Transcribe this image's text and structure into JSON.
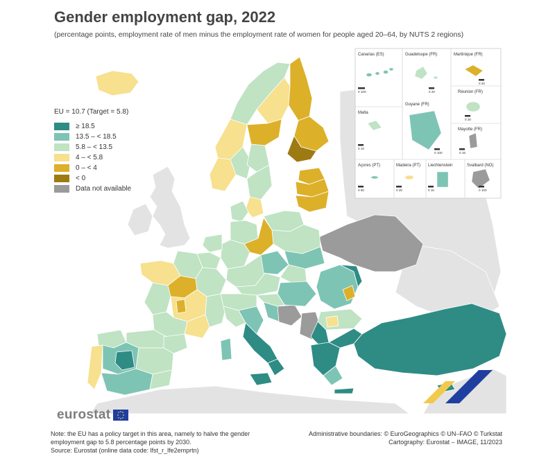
{
  "title": "Gender employment gap, 2022",
  "subtitle": "(percentage points, employment rate of men minus the employment rate of women for people aged 20–64, by NUTS 2 regions)",
  "legend": {
    "eu_value": "EU = 10.7 (Target = 5.8)",
    "classes": [
      {
        "label": "≥ 18.5",
        "color": "#2e8c85"
      },
      {
        "label": "13.5 – < 18.5",
        "color": "#7ec4b4"
      },
      {
        "label": "5.8 – < 13.5",
        "color": "#bfe3c3"
      },
      {
        "label": "4 – < 5.8",
        "color": "#f7e08e"
      },
      {
        "label": "0 – < 4",
        "color": "#ddb02a"
      },
      {
        "label": "< 0",
        "color": "#9e7a12"
      },
      {
        "label": "Data not available",
        "color": "#9b9b9b"
      }
    ]
  },
  "insets": [
    {
      "name": "Canarias (ES)",
      "scale": "0   100"
    },
    {
      "name": "Guadeloupe (FR)",
      "scale": "0   20"
    },
    {
      "name": "Martinique (FR)",
      "scale": "0   20"
    },
    {
      "name": "Réunion (FR)",
      "scale": "0   20"
    },
    {
      "name": "Malta",
      "scale": "0   10"
    },
    {
      "name": "Guyane (FR)",
      "scale": "0   100"
    },
    {
      "name": "Mayotte (FR)",
      "scale": "0   15"
    },
    {
      "name": "Açores (PT)",
      "scale": "0   50"
    },
    {
      "name": "Madeira (PT)",
      "scale": "0   20"
    },
    {
      "name": "Liechtenstein",
      "scale": "0   10"
    },
    {
      "name": "Svalbard (NO)",
      "scale": "0   100"
    }
  ],
  "brand": "eurostat",
  "footer": {
    "note": "Note: the EU has a policy target in this area, namely to halve the gender employment gap to 5.8 percentage points by 2030.",
    "source": "Source: Eurostat (online data code: lfst_r_lfe2emprtn)",
    "boundaries": "Administrative boundaries: © EuroGeographics © UN–FAO © Turkstat",
    "cartography": "Cartography: Eurostat – IMAGE, 11/2023"
  },
  "colors": {
    "sea": "#ffffff",
    "non_eu_land": "#e3e3e3",
    "border": "#ffffff"
  }
}
